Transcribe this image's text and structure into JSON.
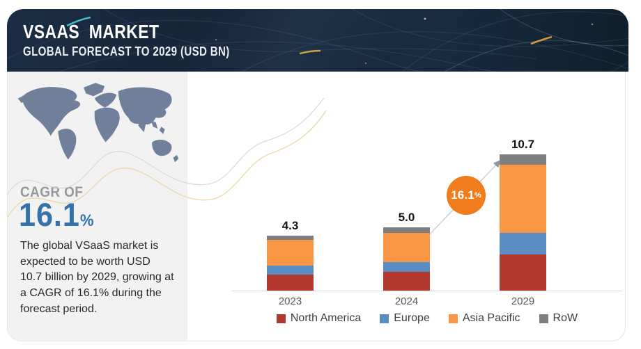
{
  "header": {
    "title": "VSAAS  MARKET",
    "subtitle": "GLOBAL FORECAST TO 2029 (USD BN)"
  },
  "sidebar": {
    "cagr_label": "CAGR OF",
    "cagr_value": "16.1",
    "cagr_unit": "%",
    "description": "The global VSaaS market is expected to be worth USD 10.7 billion by 2029, growing at a CAGR of 16.1% during the forecast period.",
    "map_icon": "world-map"
  },
  "colors": {
    "header_bg": "#152638",
    "sidebar_bg": "#f2f2f3",
    "cagr_blue": "#3273ac",
    "badge_orange": "#f07c1e",
    "map_slate": "#70809a",
    "wave_gray": "#d9d9d9",
    "wave_gold": "#e9d6a4"
  },
  "chart_data": {
    "type": "bar",
    "stacked": true,
    "unit": "USD BN",
    "categories": [
      "2023",
      "2024",
      "2029"
    ],
    "series": [
      {
        "name": "North America",
        "color": "#b2392f",
        "values": [
          1.25,
          1.45,
          2.85
        ]
      },
      {
        "name": "Europe",
        "color": "#5b8dc5",
        "values": [
          0.7,
          0.8,
          1.7
        ]
      },
      {
        "name": "Asia Pacific",
        "color": "#f99746",
        "values": [
          2.05,
          2.3,
          5.35
        ]
      },
      {
        "name": "RoW",
        "color": "#7f7f7f",
        "values": [
          0.3,
          0.45,
          0.8
        ]
      }
    ],
    "totals": [
      "4.3",
      "5.0",
      "10.7"
    ],
    "ylim": [
      0,
      11
    ],
    "gridlines": false,
    "legend_position": "bottom",
    "annotation": {
      "cagr_badge_value": "16.1",
      "cagr_badge_unit": "%",
      "badge_color": "#f07c1e"
    }
  }
}
